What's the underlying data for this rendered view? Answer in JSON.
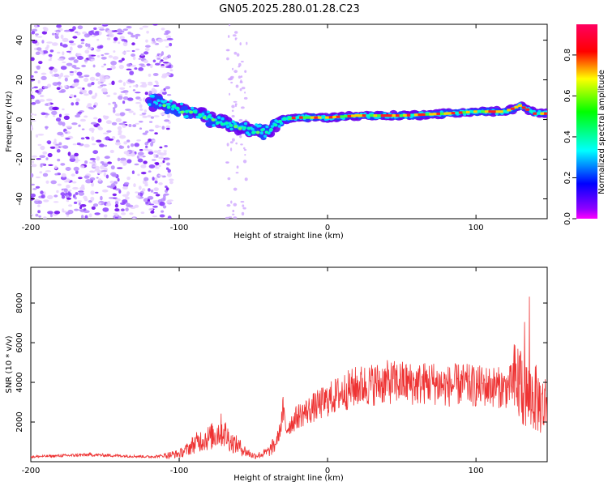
{
  "figure": {
    "title": "GN05.2025.280.01.28.C23"
  },
  "chart_data": [
    {
      "type": "heatmap",
      "title": "GN05.2025.280.01.28.C23",
      "xlabel": "Height of straight line (km)",
      "ylabel": "Frequency (Hz)",
      "xlim": [
        -200,
        148
      ],
      "ylim": [
        -50,
        48
      ],
      "x_ticks": [
        -200,
        -100,
        0,
        100
      ],
      "y_ticks": [
        -40,
        -20,
        0,
        20,
        40
      ],
      "colorbar": {
        "label": "Normalized spectral amplitude",
        "range": [
          0,
          0.95
        ],
        "ticks": [
          "0.0",
          "0.2",
          "0.4",
          "0.6",
          "0.8"
        ],
        "colors": [
          "#ff00ff",
          "#ff0000",
          "#ffff00",
          "#00ff00",
          "#00ffff",
          "#0000ff",
          "#ff00ff"
        ]
      },
      "ridge_points": [
        {
          "x": -115,
          "f": 9
        },
        {
          "x": -100,
          "f": 5
        },
        {
          "x": -90,
          "f": 3
        },
        {
          "x": -80,
          "f": 1
        },
        {
          "x": -70,
          "f": -2
        },
        {
          "x": -60,
          "f": -4
        },
        {
          "x": -50,
          "f": -6
        },
        {
          "x": -40,
          "f": -6
        },
        {
          "x": -35,
          "f": -2
        },
        {
          "x": -30,
          "f": 0
        },
        {
          "x": -20,
          "f": 1
        },
        {
          "x": 0,
          "f": 1
        },
        {
          "x": 20,
          "f": 2
        },
        {
          "x": 50,
          "f": 2
        },
        {
          "x": 80,
          "f": 3
        },
        {
          "x": 100,
          "f": 4
        },
        {
          "x": 120,
          "f": 4
        },
        {
          "x": 130,
          "f": 7
        },
        {
          "x": 140,
          "f": 3
        },
        {
          "x": 148,
          "f": 3
        }
      ]
    },
    {
      "type": "line",
      "xlabel": "Height of straight line (km)",
      "ylabel": "SNR (10 * v/v)",
      "xlim": [
        -200,
        148
      ],
      "ylim": [
        0,
        9800
      ],
      "x_ticks": [
        -200,
        -100,
        0,
        100
      ],
      "y_ticks": [
        2000,
        4000,
        6000,
        8000
      ],
      "series": [
        {
          "name": "SNR",
          "color": "#ee3333",
          "x": [
            -200,
            -180,
            -160,
            -140,
            -120,
            -110,
            -100,
            -95,
            -90,
            -85,
            -80,
            -75,
            -72,
            -70,
            -65,
            -60,
            -55,
            -50,
            -45,
            -40,
            -35,
            -32,
            -30,
            -28,
            -25,
            -20,
            -10,
            0,
            10,
            20,
            30,
            40,
            50,
            60,
            70,
            80,
            90,
            100,
            110,
            120,
            125,
            130,
            132,
            135,
            140,
            145,
            148
          ],
          "values": [
            250,
            300,
            350,
            300,
            250,
            300,
            400,
            600,
            900,
            1100,
            1200,
            1400,
            1600,
            1500,
            1000,
            800,
            500,
            300,
            350,
            500,
            900,
            1600,
            2600,
            1600,
            1900,
            2300,
            2700,
            3100,
            3500,
            3800,
            3900,
            4000,
            4000,
            3900,
            4000,
            3800,
            3900,
            3800,
            3800,
            3700,
            3900,
            4100,
            3500,
            3300,
            3200,
            2800,
            3000
          ]
        }
      ]
    }
  ]
}
